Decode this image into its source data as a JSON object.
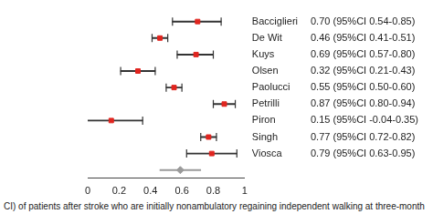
{
  "chart_data": {
    "type": "forest",
    "categories": [
      "Bacciglieri",
      "De Wit",
      "Kuys",
      "Olsen",
      "Paolucci",
      "Petrilli",
      "Piron",
      "Singh",
      "Viosca",
      null
    ],
    "values": [
      0.7,
      0.46,
      0.69,
      0.32,
      0.55,
      0.87,
      0.15,
      0.77,
      0.79,
      0.59
    ],
    "ci_lower": [
      0.54,
      0.41,
      0.57,
      0.21,
      0.5,
      0.8,
      -0.04,
      0.72,
      0.63,
      0.46
    ],
    "ci_upper": [
      0.85,
      0.51,
      0.8,
      0.43,
      0.6,
      0.94,
      0.35,
      0.82,
      0.95,
      0.72
    ],
    "value_labels": [
      "0.70 (95%CI 0.54-0.85)",
      "0.46 (95%CI 0.41-0.51)",
      "0.69 (95%CI 0.57-0.80)",
      "0.32 (95%CI 0.21-0.43)",
      "0.55 (95%CI 0.50-0.60)",
      "0.87 (95%CI 0.80-0.94)",
      "0.15 (95%CI -0.04-0.35)",
      "0.77 (95%CI 0.72-0.82)",
      "0.79 (95%CI 0.63-0.95)",
      null
    ],
    "colors": [
      "#e0251f",
      "#e0251f",
      "#e0251f",
      "#e0251f",
      "#e0251f",
      "#e0251f",
      "#e0251f",
      "#e0251f",
      "#e0251f",
      "#9a9a9a"
    ],
    "xlim": [
      0,
      1
    ],
    "xticks": [
      0,
      0.2,
      0.4,
      0.6,
      0.8,
      1
    ],
    "caption": "CI) of patients after stroke who are initially nonambulatory regaining independent walking at three-month"
  }
}
